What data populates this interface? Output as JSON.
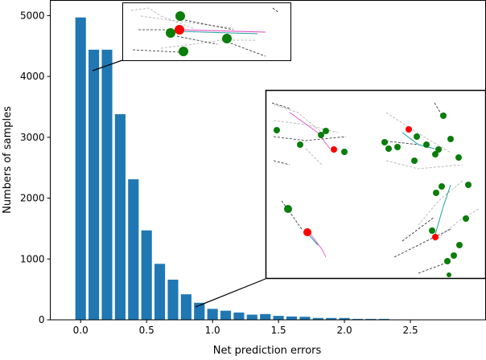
{
  "chart_data": {
    "type": "bar",
    "title": "",
    "xlabel": "Net prediction errors",
    "ylabel": "Numbers of samples",
    "x": [
      0.0,
      0.1,
      0.2,
      0.3,
      0.4,
      0.5,
      0.6,
      0.7,
      0.8,
      0.9,
      1.0,
      1.1,
      1.2,
      1.3,
      1.4,
      1.5,
      1.6,
      1.7,
      1.8,
      1.9,
      2.0,
      2.1,
      2.2,
      2.3,
      2.4,
      2.5,
      2.6,
      2.7,
      2.8,
      2.9
    ],
    "values": [
      4970,
      4440,
      4440,
      3380,
      2310,
      1470,
      920,
      660,
      420,
      280,
      180,
      150,
      120,
      85,
      95,
      65,
      55,
      50,
      30,
      30,
      30,
      15,
      15,
      15,
      5,
      0,
      5,
      0,
      5,
      0
    ],
    "bar_width": 0.08,
    "xlim": [
      -0.23,
      3.07
    ],
    "ylim": [
      0,
      5250
    ],
    "xticks": [
      "0.0",
      "0.5",
      "1.0",
      "1.5",
      "2.0",
      "2.5"
    ],
    "yticks": [
      "0",
      "1000",
      "2000",
      "3000",
      "4000",
      "5000"
    ],
    "grid": false,
    "color": "#1f77b4",
    "annotations": [
      "inset trajectory plot at x=0.1",
      "inset trajectory plots at x=0.9"
    ]
  }
}
